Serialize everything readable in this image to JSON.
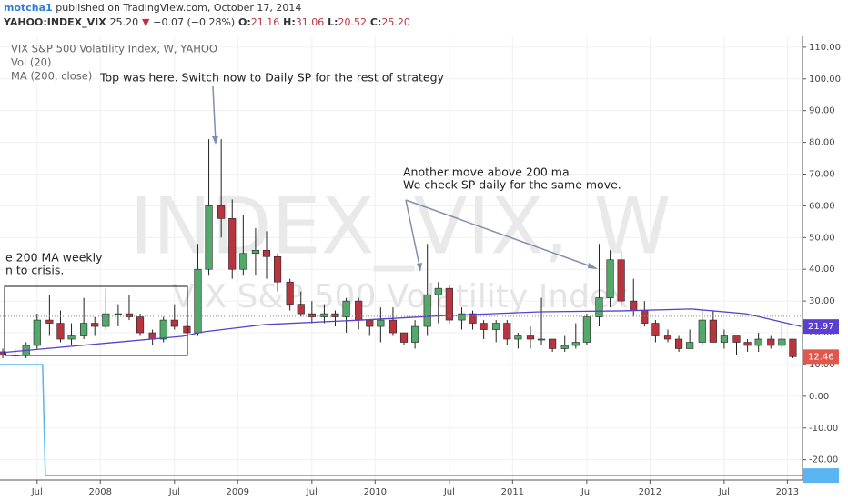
{
  "header": {
    "author": "motcha1",
    "published": "published on TradingView.com, October 17, 2014",
    "symbol": "YAHOO:INDEX_VIX",
    "price": "25.20",
    "arrow": "▼",
    "change": "−0.07 (−0.28%)",
    "open_label": "O:",
    "open": "21.16",
    "high_label": "H:",
    "high": "31.06",
    "low_label": "L:",
    "low": "20.52",
    "close_label": "C:",
    "close": "25.20"
  },
  "chart_data": {
    "type": "candlestick",
    "legend": [
      "VIX S&P 500 Volatility Index, W, YAHOO",
      "Vol (20)",
      "MA (200, close)"
    ],
    "watermark": "INDEX_VIX, W",
    "watermark_subtitle": "VIX S&P 500 Volatility Index",
    "annotations": [
      "Top was here. Switch now to Daily SP for the rest of strategy",
      "Another move above 200 ma",
      "We check SP daily for the same move.",
      "e 200 MA weekly",
      "n to crisis."
    ],
    "x": [
      2007.29,
      2007.38,
      2007.46,
      2007.54,
      2007.63,
      2007.71,
      2007.79,
      2007.88,
      2007.96,
      2008.04,
      2008.13,
      2008.21,
      2008.29,
      2008.38,
      2008.46,
      2008.54,
      2008.63,
      2008.71,
      2008.79,
      2008.88,
      2008.96,
      2009.04,
      2009.13,
      2009.21,
      2009.29,
      2009.38,
      2009.46,
      2009.54,
      2009.63,
      2009.71,
      2009.79,
      2009.88,
      2009.96,
      2010.04,
      2010.13,
      2010.21,
      2010.29,
      2010.38,
      2010.46,
      2010.54,
      2010.63,
      2010.71,
      2010.79,
      2010.88,
      2010.96,
      2011.04,
      2011.13,
      2011.21,
      2011.29,
      2011.38,
      2011.46,
      2011.54,
      2011.63,
      2011.71,
      2011.79,
      2011.88,
      2011.96,
      2012.04,
      2012.13,
      2012.21,
      2012.29,
      2012.38,
      2012.46,
      2012.54,
      2012.63,
      2012.71,
      2012.79,
      2012.88,
      2012.96,
      2013.04
    ],
    "open": [
      14,
      13,
      13,
      16,
      24,
      23,
      18,
      19,
      23,
      22,
      26,
      26,
      25,
      20,
      18,
      24,
      22,
      20,
      40,
      60,
      56,
      40,
      45,
      46,
      44,
      36,
      29,
      26,
      25,
      26,
      25,
      30,
      24,
      22,
      24,
      20,
      17,
      22,
      32,
      34,
      24,
      26,
      23,
      21,
      23,
      18,
      19,
      18,
      18,
      15,
      16,
      17,
      25,
      31,
      43,
      30,
      27,
      23,
      19,
      18,
      15,
      17,
      24,
      17,
      19,
      17,
      16,
      18,
      16,
      18
    ],
    "high": [
      15,
      15,
      17,
      26,
      32,
      27,
      23,
      31,
      25,
      34,
      29,
      32,
      26,
      21,
      25,
      29,
      24,
      48,
      81,
      81,
      62,
      57,
      53,
      52,
      45,
      37,
      33,
      30,
      29,
      27,
      31,
      31,
      24,
      28,
      28,
      20,
      24,
      48,
      36,
      35,
      28,
      27,
      24,
      24,
      24,
      20,
      22,
      31,
      18,
      19,
      23,
      26,
      48,
      46,
      46,
      37,
      30,
      24,
      21,
      19,
      21,
      27,
      27,
      21,
      19,
      18,
      20,
      19,
      23,
      18
    ],
    "low": [
      12,
      12,
      12,
      15,
      19,
      17,
      16,
      18,
      19,
      21,
      22,
      24,
      19,
      16,
      17,
      21,
      19,
      19,
      38,
      50,
      37,
      38,
      38,
      37,
      33,
      27,
      25,
      23,
      23,
      22,
      20,
      21,
      19,
      17,
      19,
      16,
      15,
      19,
      23,
      23,
      21,
      21,
      18,
      17,
      16,
      15,
      15,
      16,
      14,
      14,
      15,
      16,
      22,
      28,
      28,
      25,
      22,
      17,
      17,
      14,
      15,
      16,
      17,
      15,
      13,
      14,
      14,
      15,
      15,
      12
    ],
    "close": [
      13,
      13,
      16,
      24,
      23,
      18,
      19,
      23,
      22,
      26,
      26,
      25,
      20,
      18,
      24,
      22,
      20,
      40,
      60,
      56,
      40,
      45,
      46,
      44,
      36,
      29,
      26,
      25,
      26,
      25,
      30,
      24,
      22,
      24,
      20,
      17,
      22,
      32,
      34,
      24,
      26,
      23,
      21,
      23,
      18,
      19,
      18,
      18,
      15,
      16,
      17,
      25,
      31,
      43,
      30,
      27,
      23,
      19,
      18,
      15,
      17,
      24,
      17,
      19,
      17,
      16,
      18,
      16,
      18,
      12.46
    ],
    "up_color": "#53a96a",
    "down_color": "#b8353f",
    "ma": {
      "x": [
        2007.27,
        2008.6,
        2008.75,
        2009.2,
        2009.9,
        2010.5,
        2011.2,
        2011.8,
        2012.3,
        2012.7,
        2013.1
      ],
      "values": [
        13.7,
        18.9,
        20.3,
        22.6,
        24,
        25.4,
        26.6,
        26.9,
        27.5,
        26,
        21.97
      ],
      "color": "#5b3fd0"
    },
    "vol": {
      "x": [
        2007.27,
        2007.58,
        2007.6,
        2013.11
      ],
      "values": [
        10,
        10,
        -25,
        -25
      ],
      "color": "#5ab4f0"
    },
    "last_price": 25.2,
    "xlim": [
      2007.27,
      2013.11
    ],
    "ylim": [
      -26.4,
      113.4
    ],
    "xticks": [
      {
        "value": 2007.54,
        "label": "Jul"
      },
      2008,
      {
        "value": 2008.54,
        "label": "Jul"
      },
      2009,
      {
        "value": 2009.54,
        "label": "Jul"
      },
      2010,
      {
        "value": 2010.54,
        "label": "Jul"
      },
      2011,
      {
        "value": 2011.54,
        "label": "Jul"
      },
      2012,
      {
        "value": 2012.54,
        "label": "Jul"
      },
      2013
    ],
    "yticks": [
      {
        "value": 110,
        "label": "110.00"
      },
      {
        "value": 100,
        "label": "100.00"
      },
      {
        "value": 90,
        "label": "90.00"
      },
      {
        "value": 80,
        "label": "80.00"
      },
      {
        "value": 70,
        "label": "70.00"
      },
      {
        "value": 60,
        "label": "60.00"
      },
      {
        "value": 50,
        "label": "50.00"
      },
      {
        "value": 40,
        "label": "40.00"
      },
      {
        "value": 30,
        "label": "30.00"
      },
      {
        "value": 20,
        "label": "20.00"
      },
      {
        "value": 10,
        "label": "10.00"
      },
      {
        "value": 0,
        "label": "0.00"
      },
      {
        "value": -10,
        "label": "-10.00"
      },
      {
        "value": -20,
        "label": "-20.00"
      }
    ],
    "grid": true
  }
}
